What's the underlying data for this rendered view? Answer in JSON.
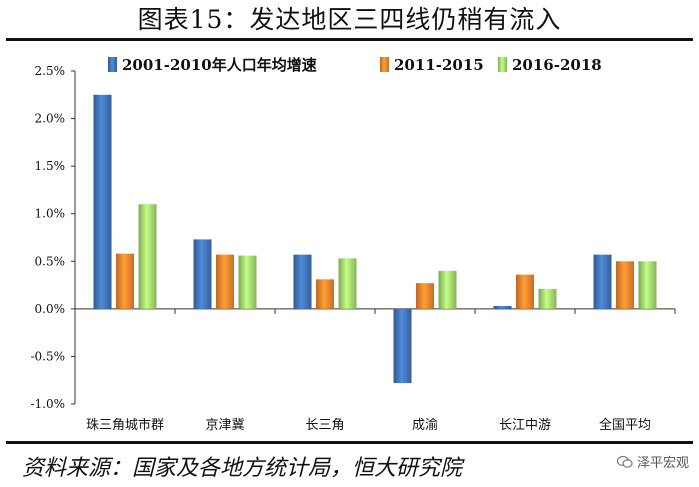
{
  "title": "图表15：发达地区三四线仍稍有流入",
  "source": "资料来源：国家及各地方统计局，恒大研究院",
  "watermark": "泽平宏观",
  "colors": {
    "s0": "#3f6fb0",
    "s1": "#ef7f2a",
    "s2": "#9dd16a"
  },
  "chart_data": {
    "type": "bar",
    "categories": [
      "珠三角城市群",
      "京津冀",
      "长三角",
      "成渝",
      "长江中游",
      "全国平均"
    ],
    "series": [
      {
        "name": "2001-2010年人口年均增速",
        "values": [
          2.25,
          0.73,
          0.57,
          -0.78,
          0.03,
          0.57
        ]
      },
      {
        "name": "2011-2015",
        "values": [
          0.58,
          0.57,
          0.31,
          0.27,
          0.36,
          0.5
        ]
      },
      {
        "name": "2016-2018",
        "values": [
          1.1,
          0.56,
          0.53,
          0.4,
          0.21,
          0.5
        ]
      }
    ],
    "yticks": [
      "2.5%",
      "2.0%",
      "1.5%",
      "1.0%",
      "0.5%",
      "0.0%",
      "-0.5%",
      "-1.0%"
    ],
    "ylim": [
      -1.0,
      2.5
    ],
    "legend_position": "top"
  }
}
